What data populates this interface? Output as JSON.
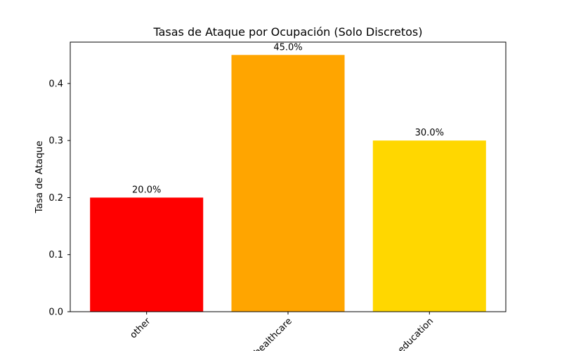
{
  "chart_data": {
    "type": "bar",
    "title": "Tasas de Ataque por Ocupación (Solo Discretos)",
    "xlabel": "",
    "ylabel": "Tasa de Ataque",
    "categories": [
      "other",
      "healthcare",
      "education"
    ],
    "values": [
      0.2,
      0.45,
      0.3
    ],
    "data_labels": [
      "20.0%",
      "45.0%",
      "30.0%"
    ],
    "colors": [
      "#ff0000",
      "#ffa500",
      "#ffd700"
    ],
    "ylim": [
      0,
      0.4725
    ],
    "yticks": [
      0.0,
      0.1,
      0.2,
      0.3,
      0.4
    ],
    "ytick_labels": [
      "0.0",
      "0.1",
      "0.2",
      "0.3",
      "0.4"
    ],
    "xtick_rotation": 45,
    "grid": false,
    "legend": "none"
  }
}
